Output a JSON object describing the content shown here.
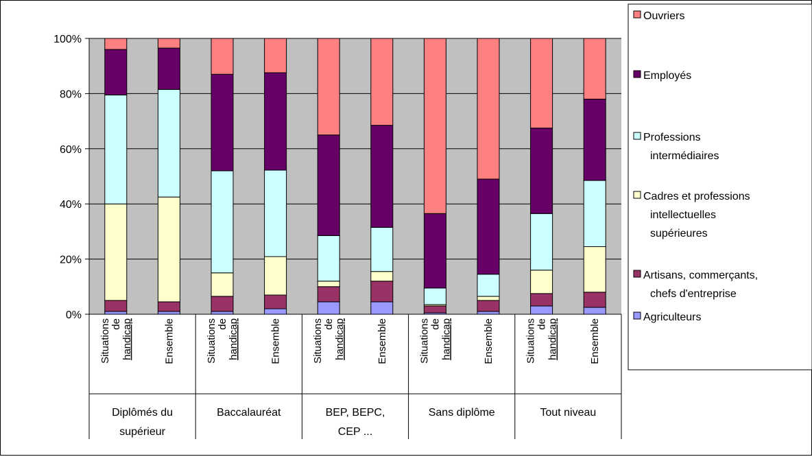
{
  "chart_data": {
    "type": "bar",
    "stacked": "percent",
    "ylim": [
      0,
      100
    ],
    "yticks": [
      "0%",
      "20%",
      "40%",
      "60%",
      "80%",
      "100%"
    ],
    "grid": true,
    "legend_position": "right",
    "groups": [
      {
        "label": [
          "Diplômés du",
          "supérieur"
        ],
        "bars": [
          "Situations de handicap",
          "Ensemble"
        ]
      },
      {
        "label": [
          "Baccalauréat"
        ],
        "bars": [
          "Situations de handicap",
          "Ensemble"
        ]
      },
      {
        "label": [
          "BEP, BEPC,",
          "CEP ..."
        ],
        "bars": [
          "Situations de handicap",
          "Ensemble"
        ]
      },
      {
        "label": [
          "Sans diplôme"
        ],
        "bars": [
          "Situations de handicap",
          "Ensemble"
        ]
      },
      {
        "label": [
          "Tout niveau"
        ],
        "bars": [
          "Situations de handicap",
          "Ensemble"
        ]
      }
    ],
    "bar_label_lines": {
      "Situations de handicap": [
        "Situations",
        "de",
        "handicap"
      ],
      "Ensemble": [
        "Ensemble"
      ]
    },
    "series": [
      {
        "name": "Agriculteurs",
        "color": "#9999ff",
        "values": [
          1,
          1,
          1,
          2,
          4.5,
          4.5,
          0.5,
          1,
          3,
          2.5
        ]
      },
      {
        "name": "Artisans, commerçants, chefs d'entreprise",
        "color": "#993366",
        "values": [
          4,
          3.5,
          5.5,
          5,
          5.5,
          7.5,
          2.5,
          4,
          4.5,
          5.5
        ]
      },
      {
        "name": "Cadres et professions intellectuelles supérieures",
        "color": "#ffffcc",
        "values": [
          35,
          38,
          8.5,
          14,
          2,
          3.5,
          0.5,
          1.5,
          8.5,
          16.5
        ]
      },
      {
        "name": "Professions intermédiaires",
        "color": "#ccffff",
        "values": [
          39.5,
          39,
          37,
          31.5,
          16.5,
          16,
          6,
          8,
          20.5,
          24
        ]
      },
      {
        "name": "Employés",
        "color": "#660066",
        "values": [
          16.5,
          15,
          35,
          35.5,
          36.5,
          37,
          27,
          34.5,
          31,
          29.5
        ]
      },
      {
        "name": "Ouvriers",
        "color": "#ff8080",
        "values": [
          4,
          3.5,
          13,
          12.5,
          35,
          31.5,
          63.5,
          51,
          32.5,
          22
        ]
      }
    ],
    "legend": [
      {
        "lines": [
          "Ouvriers"
        ],
        "series": 5
      },
      {
        "lines": [
          "Employés"
        ],
        "series": 4
      },
      {
        "lines": [
          "Professions",
          "intermédiaires"
        ],
        "series": 3
      },
      {
        "lines": [
          "Cadres et professions",
          "intellectuelles",
          "supérieures"
        ],
        "series": 2
      },
      {
        "lines": [
          "Artisans, commerçants,",
          "chefs d'entreprise"
        ],
        "series": 1
      },
      {
        "lines": [
          "Agriculteurs"
        ],
        "series": 0
      }
    ],
    "colors": {
      "plot_background": "#c0c0c0",
      "grid": "#000000"
    }
  }
}
